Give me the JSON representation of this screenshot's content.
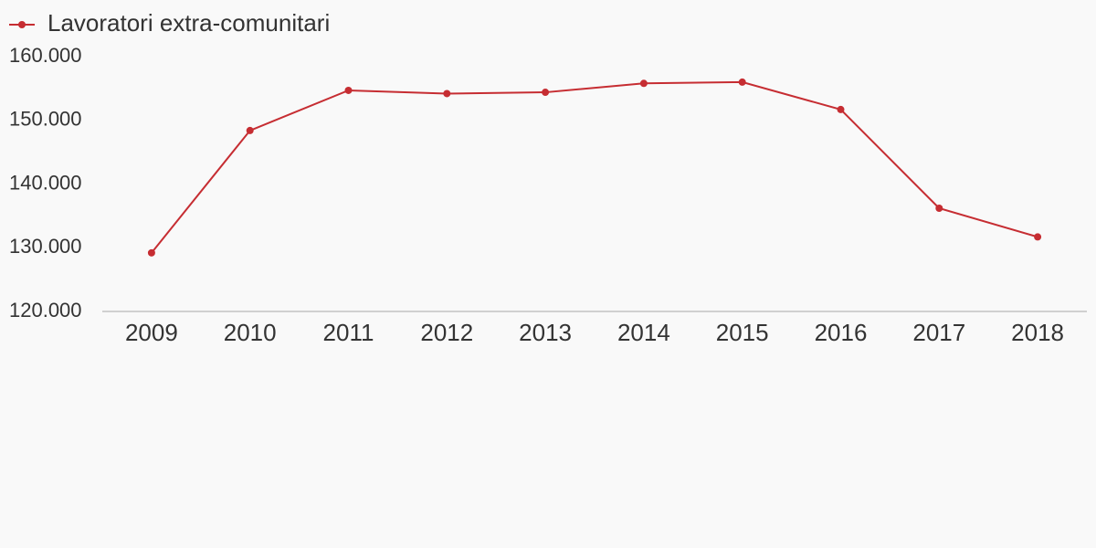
{
  "chart_data": {
    "type": "line",
    "categories": [
      "2009",
      "2010",
      "2011",
      "2012",
      "2013",
      "2014",
      "2015",
      "2016",
      "2017",
      "2018"
    ],
    "series": [
      {
        "name": "Lavoratori extra-comunitari",
        "color": "#c62d32",
        "values": [
          129200,
          148400,
          154700,
          154200,
          154400,
          155800,
          156000,
          151700,
          136200,
          131700
        ]
      }
    ],
    "ylim": [
      120000,
      160000
    ],
    "yticks": [
      {
        "value": 120000,
        "label": "120.000"
      },
      {
        "value": 130000,
        "label": "130.000"
      },
      {
        "value": 140000,
        "label": "140.000"
      },
      {
        "value": 150000,
        "label": "150.000"
      },
      {
        "value": 160000,
        "label": "160.000"
      }
    ],
    "grid": false,
    "legend": "top-left"
  }
}
